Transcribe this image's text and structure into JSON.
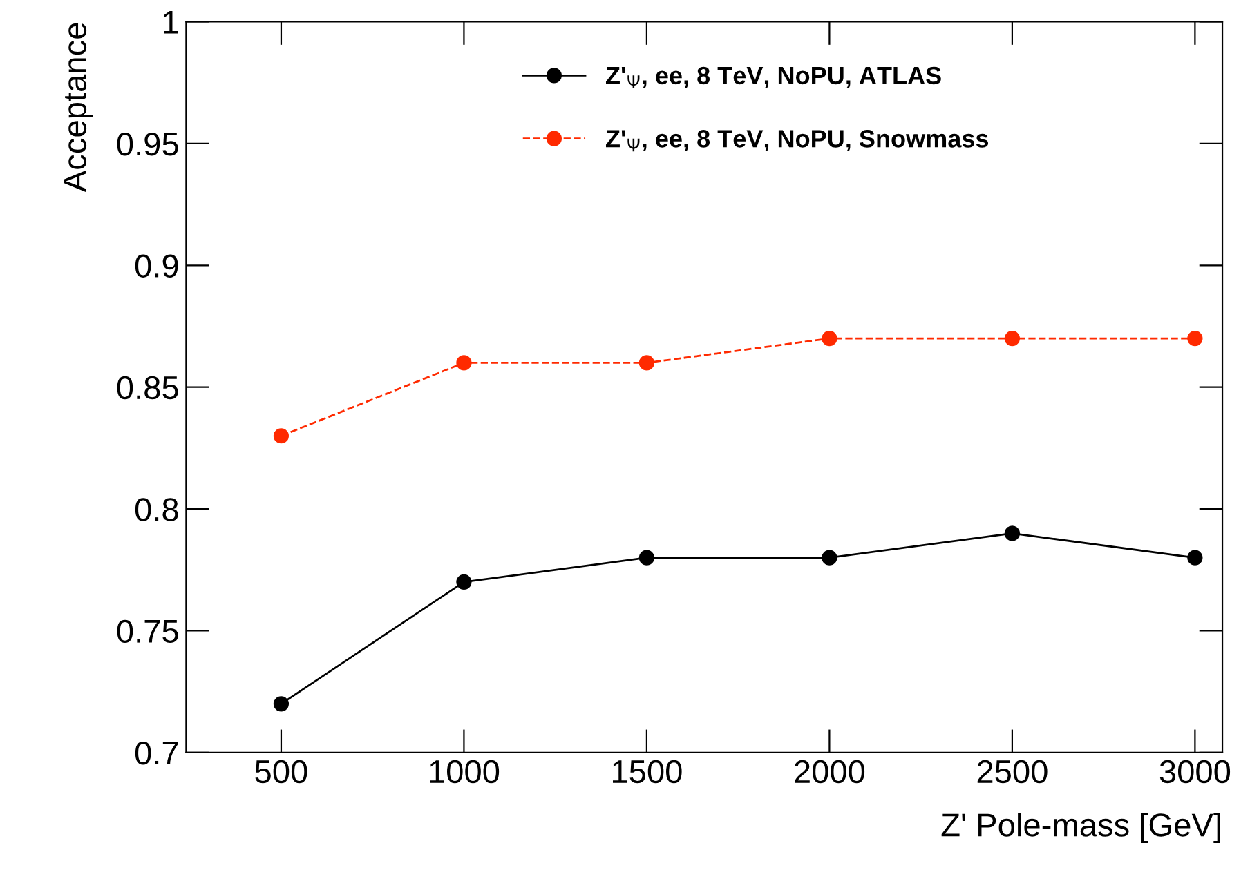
{
  "chart_data": {
    "type": "line",
    "xlabel": "Z' Pole-mass [GeV]",
    "ylabel": "Acceptance",
    "x": [
      500,
      1000,
      1500,
      2000,
      2500,
      3000
    ],
    "series": [
      {
        "name": "Z'$_{Ψ}$, ee, 8 TeV, NoPU, ATLAS",
        "color": "#000000",
        "values": [
          0.72,
          0.77,
          0.78,
          0.78,
          0.79,
          0.78
        ],
        "line_style": "solid"
      },
      {
        "name": "Z'$_{Ψ}$, ee, 8 TeV, NoPU, Snowmass",
        "color": "#ff2a00",
        "values": [
          0.83,
          0.86,
          0.86,
          0.87,
          0.87,
          0.87
        ],
        "line_style": "dashed"
      }
    ],
    "xlim": [
      240,
      3075
    ],
    "ylim": [
      0.7,
      1
    ],
    "xticks": [
      500,
      1000,
      1500,
      2000,
      2500,
      3000
    ],
    "yticks": [
      0.7,
      0.75,
      0.8,
      0.85,
      0.9,
      0.95,
      1
    ],
    "marker": "circle",
    "grid": false,
    "legend": "top"
  }
}
